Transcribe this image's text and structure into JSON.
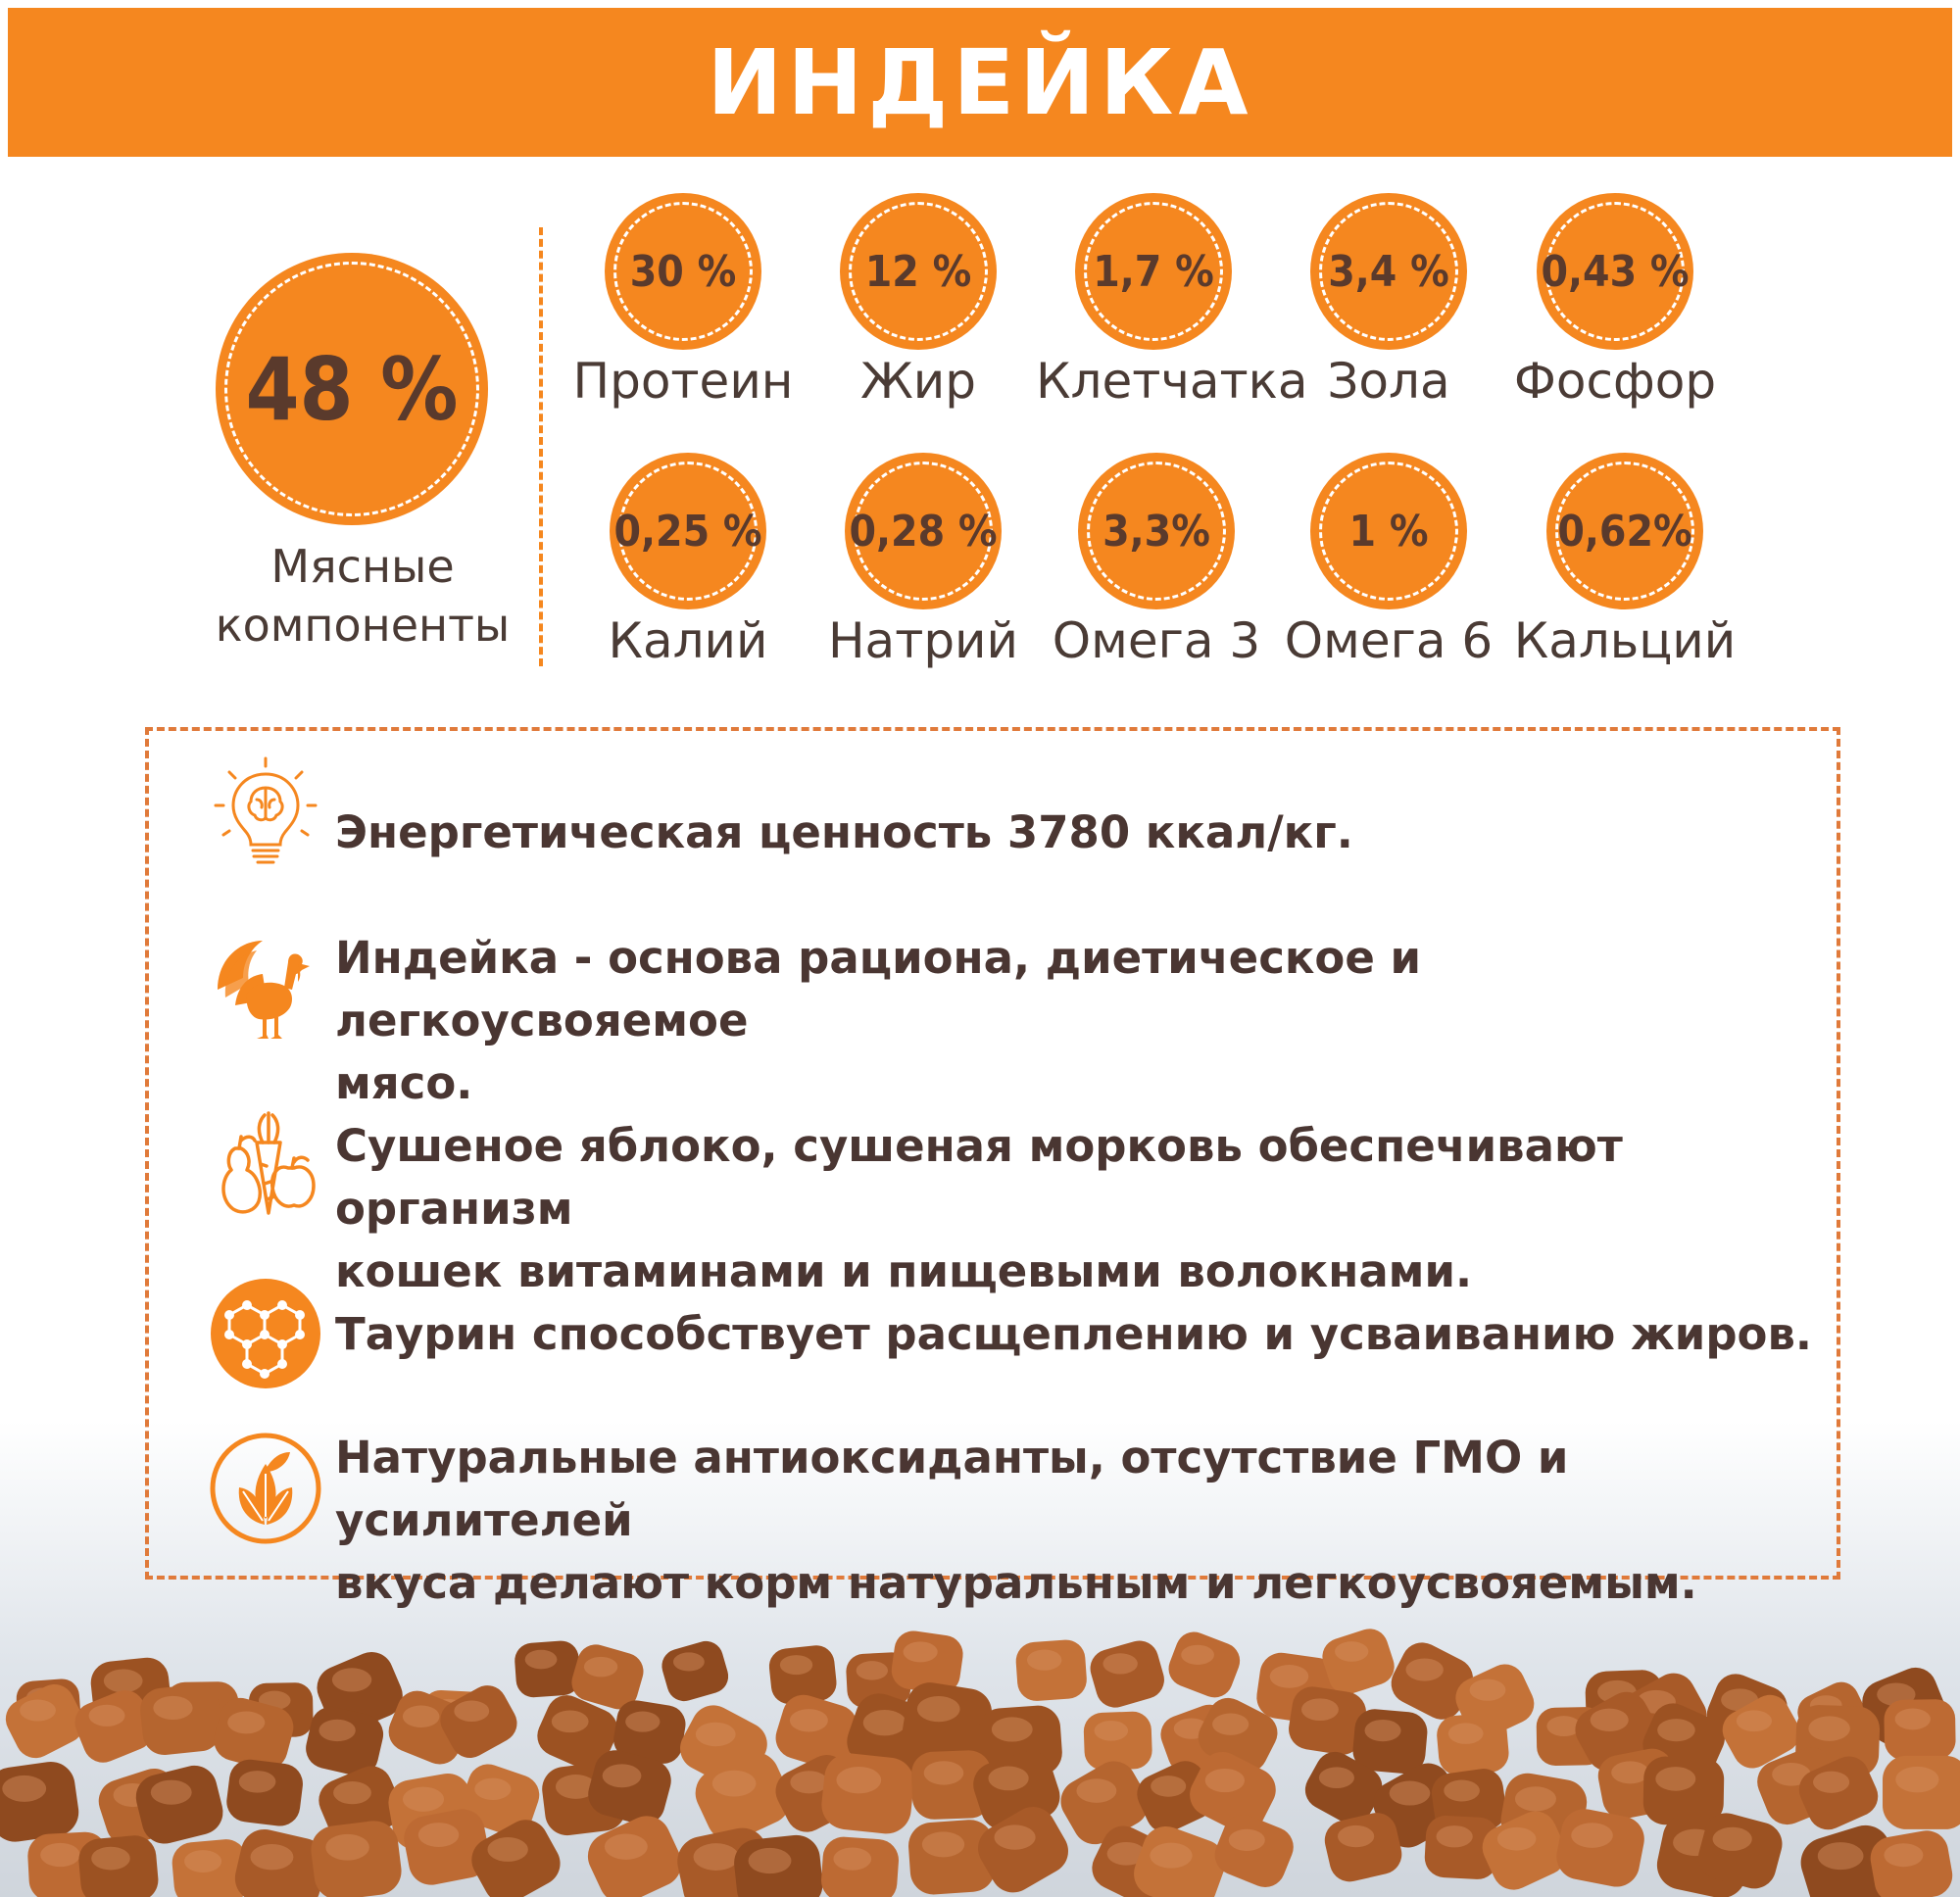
{
  "header": {
    "title": "ИНДЕЙКА"
  },
  "meat": {
    "value": "48 %",
    "label_line1": "Мясные",
    "label_line2": "компоненты"
  },
  "nutrients": [
    {
      "value": "30 %",
      "label": "Протеин"
    },
    {
      "value": "12 %",
      "label": "Жир"
    },
    {
      "value": "1,7 %",
      "label": "Клетчатка"
    },
    {
      "value": "3,4 %",
      "label": "Зола"
    },
    {
      "value": "0,43 %",
      "label": "Фосфор"
    },
    {
      "value": "0,25 %",
      "label": "Калий"
    },
    {
      "value": "0,28 %",
      "label": "Натрий"
    },
    {
      "value": "3,3%",
      "label": "Омега 3"
    },
    {
      "value": "1 %",
      "label": "Омега 6"
    },
    {
      "value": "0,62%",
      "label": "Кальций"
    }
  ],
  "features": [
    {
      "icon": "lightbulb-brain-icon",
      "text_line1": "Энергетическая ценность 3780 ккал/кг.",
      "text_line2": ""
    },
    {
      "icon": "turkey-icon",
      "text_line1": "Индейка - основа рациона, диетическое и легкоусвояемое",
      "text_line2": "мясо."
    },
    {
      "icon": "fruits-vegetables-icon",
      "text_line1": "Сушеное яблоко, сушеная морковь обеспечивают организм",
      "text_line2": "кошек витаминами и пищевыми волокнами."
    },
    {
      "icon": "molecule-icon",
      "text_line1": "Таурин способствует расщеплению и усваиванию жиров.",
      "text_line2": ""
    },
    {
      "icon": "leaf-icon",
      "text_line1": "Натуральные антиоксиданты, отсутствие ГМО и усилителей",
      "text_line2": "вкуса делают корм натуральным и легкоусвояемым."
    }
  ],
  "colors": {
    "accent": "#f5871f",
    "text_dark": "#4a3632",
    "kibble": "#b5652f"
  }
}
